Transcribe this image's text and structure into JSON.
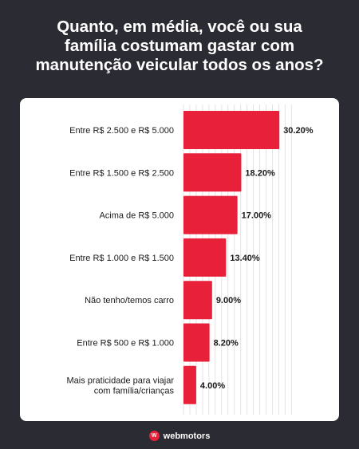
{
  "title_lines": [
    "Quanto, em média, você ou sua",
    "família costumam gastar com",
    "manutenção veicular todos os anos?"
  ],
  "chart_data": {
    "type": "bar",
    "orientation": "horizontal",
    "categories": [
      [
        "Entre R$ 2.500 e R$ 5.000"
      ],
      [
        "Entre R$ 1.500 e R$ 2.500"
      ],
      [
        "Acima de R$ 5.000"
      ],
      [
        "Entre R$ 1.000 e R$ 1.500"
      ],
      [
        "Não tenho/temos carro"
      ],
      [
        "Entre R$ 500 e R$ 1.000"
      ],
      [
        "Mais praticidade para viajar",
        "com família/crianças"
      ]
    ],
    "values": [
      30.2,
      18.2,
      17.0,
      13.4,
      9.0,
      8.2,
      4.0
    ],
    "value_labels": [
      "30.20%",
      "18.20%",
      "17.00%",
      "13.40%",
      "9.00%",
      "8.20%",
      "4.00%"
    ],
    "xlim": [
      0,
      34
    ],
    "grid": true,
    "bar_color": "#e8203a"
  },
  "brand": {
    "name": "webmotors",
    "mark": "W"
  },
  "colors": {
    "background": "#2b2b33",
    "accent": "#e8203a"
  }
}
